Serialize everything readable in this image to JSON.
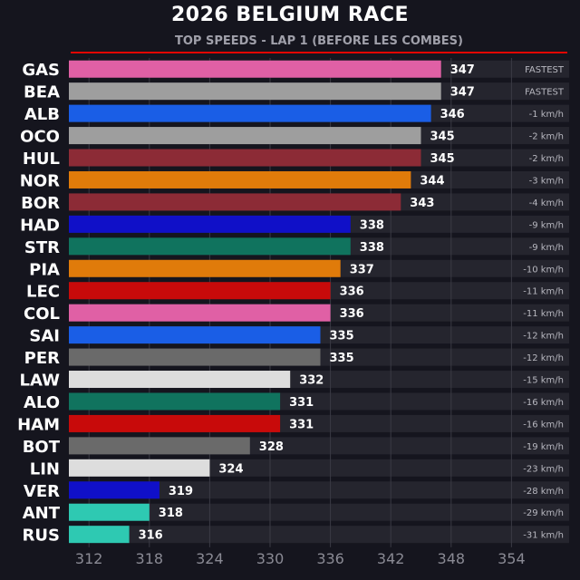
{
  "chart_data": {
    "type": "bar",
    "orientation": "horizontal",
    "title": "2026 BELGIUM RACE",
    "subtitle": "TOP SPEEDS - LAP 1 (BEFORE LES COMBES)",
    "categories": [
      "GAS",
      "BEA",
      "ALB",
      "OCO",
      "HUL",
      "NOR",
      "BOR",
      "HAD",
      "STR",
      "PIA",
      "LEC",
      "COL",
      "SAI",
      "PER",
      "LAW",
      "ALO",
      "HAM",
      "BOT",
      "LIN",
      "VER",
      "ANT",
      "RUS"
    ],
    "values": [
      347,
      347,
      346,
      345,
      345,
      344,
      343,
      338,
      338,
      337,
      336,
      336,
      335,
      335,
      332,
      331,
      331,
      328,
      324,
      319,
      318,
      316
    ],
    "deltas": [
      "FASTEST",
      "FASTEST",
      "-1 km/h",
      "-2 km/h",
      "-2 km/h",
      "-3 km/h",
      "-4 km/h",
      "-9 km/h",
      "-9 km/h",
      "-10 km/h",
      "-11 km/h",
      "-11 km/h",
      "-12 km/h",
      "-12 km/h",
      "-15 km/h",
      "-16 km/h",
      "-16 km/h",
      "-19 km/h",
      "-23 km/h",
      "-28 km/h",
      "-29 km/h",
      "-31 km/h"
    ],
    "colors": [
      "#e060a5",
      "#9e9e9e",
      "#1a5ee6",
      "#9e9e9e",
      "#8c2b36",
      "#e07b0a",
      "#8c2b36",
      "#1010c8",
      "#10735e",
      "#e07b0a",
      "#c80a0a",
      "#e060a5",
      "#1a5ee6",
      "#6a6a6a",
      "#dddddd",
      "#10735e",
      "#c80a0a",
      "#6a6a6a",
      "#dddddd",
      "#1010c8",
      "#2ec9b2",
      "#2ec9b2"
    ],
    "xlim": [
      310,
      355
    ],
    "xticks": [
      312,
      318,
      324,
      330,
      336,
      342,
      348,
      354
    ],
    "grid": true,
    "accent_color": "#e10600"
  }
}
